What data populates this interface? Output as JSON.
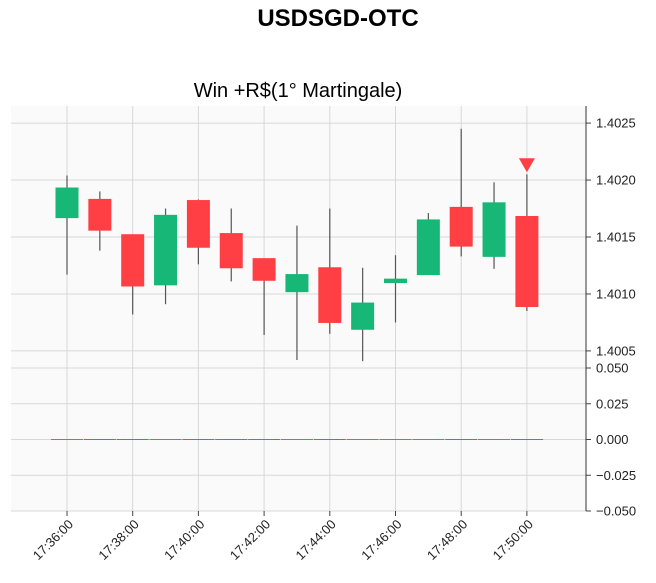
{
  "chart_data": {
    "type": "candlestick",
    "title": "USDSGD-OTC",
    "subtitle": "Win +R$(1° Martingale)",
    "xlabel": "",
    "ylabel": "",
    "x_ticks": [
      "17:36:00",
      "17:38:00",
      "17:40:00",
      "17:42:00",
      "17:44:00",
      "17:46:00",
      "17:48:00",
      "17:50:00"
    ],
    "price_ticks": [
      "1.4005",
      "1.4010",
      "1.4015",
      "1.4020",
      "1.4025"
    ],
    "volume_ticks": [
      "0.050",
      "0.025",
      "0.000",
      "−0.025",
      "−0.050"
    ],
    "price_range": [
      1.40035,
      1.40265
    ],
    "volume_range": [
      -0.05,
      0.05
    ],
    "grid": true,
    "colors": {
      "up": "#16b777",
      "down": "#ff3f44",
      "wick": "#555555",
      "marker": "#ff3f44"
    },
    "candles": [
      {
        "time": "17:36:00",
        "open": 1.40167,
        "close": 1.40193,
        "high": 1.40204,
        "low": 1.40117
      },
      {
        "time": "17:37:00",
        "open": 1.40183,
        "close": 1.40156,
        "high": 1.4019,
        "low": 1.40138
      },
      {
        "time": "17:38:00",
        "open": 1.40152,
        "close": 1.40107,
        "high": 1.40152,
        "low": 1.40082
      },
      {
        "time": "17:39:00",
        "open": 1.40108,
        "close": 1.40169,
        "high": 1.40175,
        "low": 1.40091
      },
      {
        "time": "17:40:00",
        "open": 1.40182,
        "close": 1.40141,
        "high": 1.40183,
        "low": 1.40126
      },
      {
        "time": "17:41:00",
        "open": 1.40153,
        "close": 1.40123,
        "high": 1.40175,
        "low": 1.40111
      },
      {
        "time": "17:42:00",
        "open": 1.40131,
        "close": 1.40112,
        "high": 1.40131,
        "low": 1.40064
      },
      {
        "time": "17:43:00",
        "open": 1.40102,
        "close": 1.40117,
        "high": 1.4016,
        "low": 1.40042
      },
      {
        "time": "17:44:00",
        "open": 1.40123,
        "close": 1.40075,
        "high": 1.40175,
        "low": 1.40065
      },
      {
        "time": "17:45:00",
        "open": 1.40069,
        "close": 1.40092,
        "high": 1.40123,
        "low": 1.40041
      },
      {
        "time": "17:46:00",
        "open": 1.4011,
        "close": 1.40113,
        "high": 1.40134,
        "low": 1.40075
      },
      {
        "time": "17:47:00",
        "open": 1.40117,
        "close": 1.40165,
        "high": 1.40171,
        "low": 1.40117
      },
      {
        "time": "17:48:00",
        "open": 1.40176,
        "close": 1.40142,
        "high": 1.40245,
        "low": 1.40133
      },
      {
        "time": "17:49:00",
        "open": 1.40133,
        "close": 1.4018,
        "high": 1.40198,
        "low": 1.40122
      },
      {
        "time": "17:50:00",
        "open": 1.40168,
        "close": 1.40089,
        "high": 1.40205,
        "low": 1.40085
      }
    ],
    "volume": [
      0,
      0,
      0,
      0,
      0,
      0,
      0,
      0,
      0,
      0,
      0,
      0,
      0,
      0,
      0
    ],
    "marker": {
      "time": "17:50:00",
      "shape": "triangle-down",
      "price": 1.40213
    }
  }
}
